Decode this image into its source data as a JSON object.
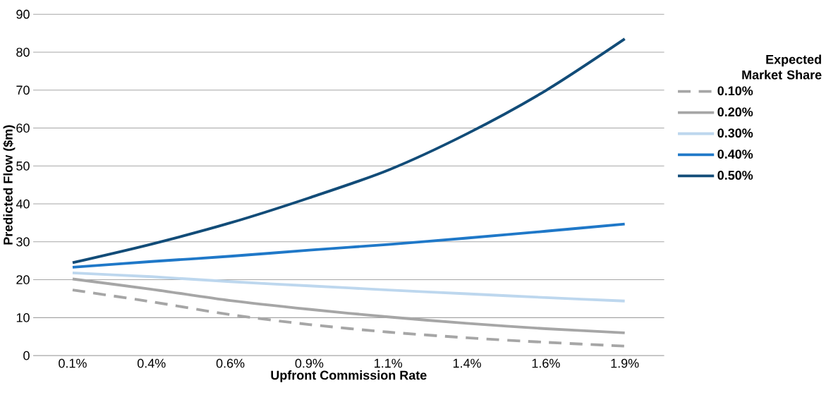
{
  "chart_data": {
    "type": "line",
    "xlabel": "Upfront Commission Rate",
    "ylabel": "Predicted Flow ($m)",
    "legend_title": "Expected Market Share",
    "categories": [
      "0.1%",
      "0.4%",
      "0.6%",
      "0.9%",
      "1.1%",
      "1.4%",
      "1.6%",
      "1.9%"
    ],
    "series": [
      {
        "name": "0.10%",
        "color": "#a6a6a6",
        "line_style": "dashed",
        "values": [
          17.3,
          14.2,
          10.8,
          8.2,
          6.2,
          4.7,
          3.5,
          2.5
        ]
      },
      {
        "name": "0.20%",
        "color": "#a6a6a6",
        "values": [
          20.2,
          17.5,
          14.5,
          12.2,
          10.2,
          8.5,
          7.1,
          6.0
        ]
      },
      {
        "name": "0.30%",
        "color": "#bdd7ee",
        "values": [
          21.8,
          20.8,
          19.5,
          18.4,
          17.3,
          16.3,
          15.3,
          14.4
        ]
      },
      {
        "name": "0.40%",
        "color": "#1f78c8",
        "values": [
          23.3,
          24.8,
          26.2,
          27.8,
          29.3,
          31.0,
          32.8,
          34.7
        ]
      },
      {
        "name": "0.50%",
        "color": "#124c78",
        "values": [
          24.5,
          29.4,
          35.0,
          41.6,
          48.9,
          58.5,
          69.9,
          83.5
        ]
      }
    ],
    "ylim": [
      0,
      90
    ],
    "yticks": [
      0,
      10,
      20,
      30,
      40,
      50,
      60,
      70,
      80,
      90
    ],
    "grid": "y",
    "legend": "right",
    "marker": "none"
  }
}
